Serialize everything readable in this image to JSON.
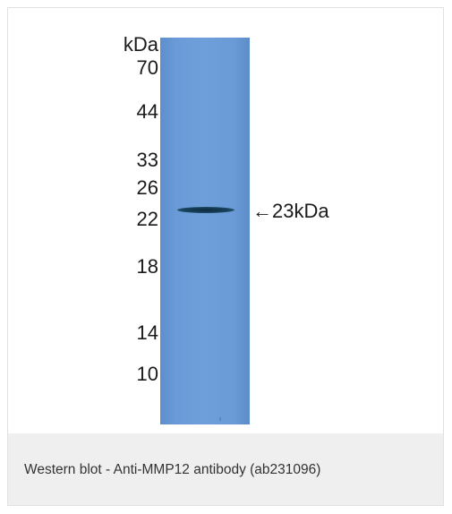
{
  "figure": {
    "unit_label": "kDa",
    "markers": [
      "70",
      "44",
      "33",
      "26",
      "22",
      "18",
      "14",
      "10"
    ],
    "band_label": "←23kDa"
  },
  "caption": "Western blot - Anti-MMP12 antibody (ab231096)",
  "colors": {
    "membrane": "#6f9fdb",
    "band": "#17405a",
    "caption_background": "#efefef"
  }
}
